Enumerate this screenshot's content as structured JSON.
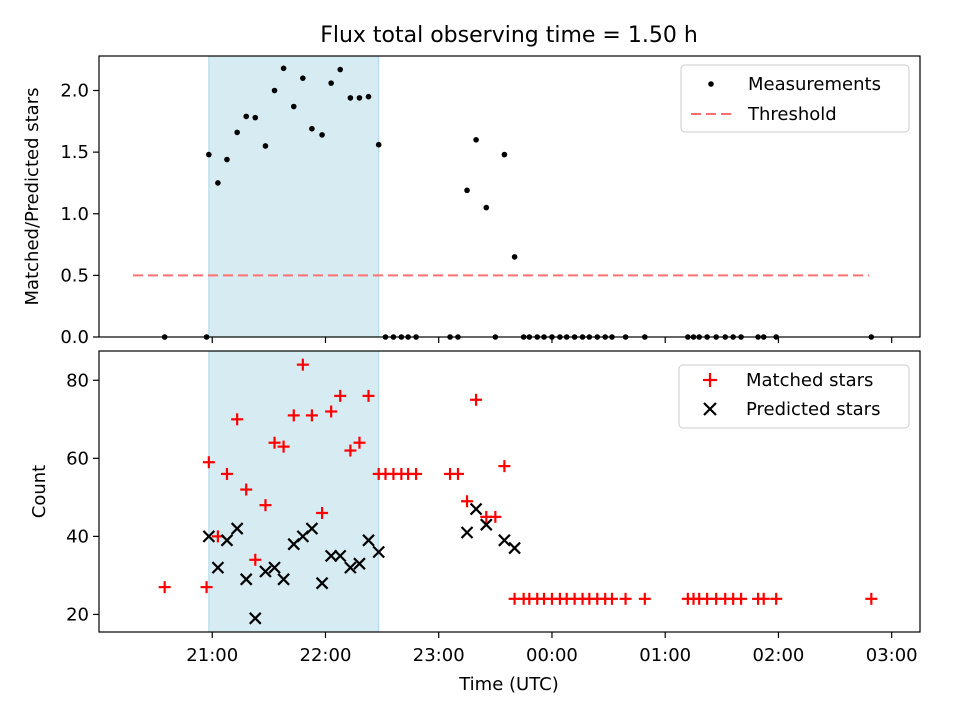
{
  "title": "Flux total observing time = 1.50 h",
  "colors": {
    "shade": "#add8e6",
    "measurement": "#000000",
    "threshold": "#ff7070",
    "matched": "#ff0000",
    "predicted": "#000000"
  },
  "chart_data": [
    {
      "type": "scatter",
      "ylabel": "Matched/Predicted stars",
      "ylim": [
        0,
        2.28
      ],
      "yticks": [
        0.0,
        0.5,
        1.0,
        1.5,
        2.0
      ],
      "ytick_labels": [
        "0.0",
        "0.5",
        "1.0",
        "1.5",
        "2.0"
      ],
      "xlim_hours": [
        20.0,
        27.25
      ],
      "shaded_interval_hours": [
        20.97,
        22.47
      ],
      "legend": {
        "position": "top-right",
        "entries": [
          "Measurements",
          "Threshold"
        ]
      },
      "threshold": {
        "name": "Threshold",
        "y": 0.5,
        "x_hours": [
          20.3,
          26.8
        ]
      },
      "series": [
        {
          "name": "Measurements",
          "x_hours": [
            20.58,
            20.95,
            20.97,
            21.05,
            21.13,
            21.22,
            21.3,
            21.38,
            21.47,
            21.55,
            21.63,
            21.72,
            21.8,
            21.88,
            21.97,
            22.05,
            22.13,
            22.22,
            22.3,
            22.38,
            22.47,
            22.53,
            22.6,
            22.67,
            22.73,
            22.8,
            23.1,
            23.17,
            23.25,
            23.33,
            23.42,
            23.5,
            23.58,
            23.67,
            23.75,
            23.8,
            23.87,
            23.93,
            24.0,
            24.07,
            24.13,
            24.2,
            24.27,
            24.33,
            24.4,
            24.47,
            24.53,
            24.65,
            24.82,
            25.2,
            25.25,
            25.3,
            25.37,
            25.45,
            25.53,
            25.6,
            25.67,
            25.82,
            25.87,
            25.98,
            26.82
          ],
          "y": [
            0.0,
            0.0,
            1.48,
            1.25,
            1.44,
            1.66,
            1.79,
            1.78,
            1.55,
            2.0,
            2.18,
            1.87,
            2.1,
            1.69,
            1.64,
            2.06,
            2.17,
            1.94,
            1.94,
            1.95,
            1.56,
            0.0,
            0.0,
            0.0,
            0.0,
            0.0,
            0.0,
            0.0,
            1.19,
            1.6,
            1.05,
            0.0,
            1.48,
            0.65,
            0.0,
            0.0,
            0.0,
            0.0,
            0.0,
            0.0,
            0.0,
            0.0,
            0.0,
            0.0,
            0.0,
            0.0,
            0.0,
            0.0,
            0.0,
            0.0,
            0.0,
            0.0,
            0.0,
            0.0,
            0.0,
            0.0,
            0.0,
            0.0,
            0.0,
            0.0,
            0.0
          ]
        }
      ]
    },
    {
      "type": "scatter",
      "xlabel": "Time (UTC)",
      "ylabel": "Count",
      "ylim": [
        15.5,
        87.5
      ],
      "yticks": [
        20,
        40,
        60,
        80
      ],
      "ytick_labels": [
        "20",
        "40",
        "60",
        "80"
      ],
      "xlim_hours": [
        20.0,
        27.25
      ],
      "xticks_hours": [
        21,
        22,
        23,
        24,
        25,
        26,
        27
      ],
      "xtick_labels": [
        "21:00",
        "22:00",
        "23:00",
        "00:00",
        "01:00",
        "02:00",
        "03:00"
      ],
      "shaded_interval_hours": [
        20.97,
        22.47
      ],
      "legend": {
        "position": "top-right",
        "entries": [
          "Matched stars",
          "Predicted stars"
        ]
      },
      "series": [
        {
          "name": "Matched stars",
          "marker": "plus",
          "x_hours": [
            20.58,
            20.95,
            20.97,
            21.05,
            21.13,
            21.22,
            21.3,
            21.38,
            21.47,
            21.55,
            21.63,
            21.72,
            21.8,
            21.88,
            21.97,
            22.05,
            22.13,
            22.22,
            22.3,
            22.38,
            22.47,
            22.53,
            22.6,
            22.67,
            22.73,
            22.8,
            23.1,
            23.17,
            23.25,
            23.33,
            23.42,
            23.5,
            23.58,
            23.67,
            23.75,
            23.8,
            23.87,
            23.93,
            24.0,
            24.07,
            24.13,
            24.2,
            24.27,
            24.33,
            24.4,
            24.47,
            24.53,
            24.65,
            24.82,
            25.2,
            25.25,
            25.3,
            25.37,
            25.45,
            25.53,
            25.6,
            25.67,
            25.82,
            25.87,
            25.98,
            26.82
          ],
          "y": [
            27,
            27,
            59,
            40,
            56,
            70,
            52,
            34,
            48,
            64,
            63,
            71,
            84,
            71,
            46,
            72,
            76,
            62,
            64,
            76,
            56,
            56,
            56,
            56,
            56,
            56,
            56,
            56,
            49,
            75,
            45,
            45,
            58,
            24,
            24,
            24,
            24,
            24,
            24,
            24,
            24,
            24,
            24,
            24,
            24,
            24,
            24,
            24,
            24,
            24,
            24,
            24,
            24,
            24,
            24,
            24,
            24,
            24,
            24,
            24,
            24
          ]
        },
        {
          "name": "Predicted stars",
          "marker": "x",
          "x_hours": [
            20.97,
            21.05,
            21.13,
            21.22,
            21.3,
            21.38,
            21.47,
            21.55,
            21.63,
            21.72,
            21.8,
            21.88,
            21.97,
            22.05,
            22.13,
            22.22,
            22.3,
            22.38,
            22.47,
            23.25,
            23.33,
            23.42,
            23.58,
            23.67
          ],
          "y": [
            40,
            32,
            39,
            42,
            29,
            19,
            31,
            32,
            29,
            38,
            40,
            42,
            28,
            35,
            35,
            32,
            33,
            39,
            36,
            41,
            47,
            43,
            39,
            37
          ]
        }
      ]
    }
  ]
}
